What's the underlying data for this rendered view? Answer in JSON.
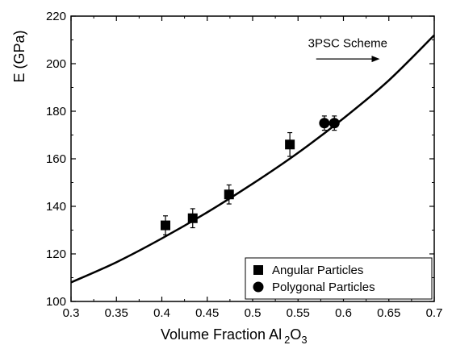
{
  "chart_data": {
    "type": "scatter",
    "title": "",
    "xlabel_parts": [
      "Volume Fraction Al",
      "2",
      "O",
      "3"
    ],
    "ylabel": "E (GPa)",
    "xlim": [
      0.3,
      0.7
    ],
    "ylim": [
      100,
      220
    ],
    "x_ticks": [
      0.3,
      0.35,
      0.4,
      0.45,
      0.5,
      0.55,
      0.6,
      0.65,
      0.7
    ],
    "x_tick_labels": [
      "0.3",
      "0.35",
      "0.4",
      "0.45",
      "0.5",
      "0.55",
      "0.6",
      "0.65",
      "0.7"
    ],
    "y_ticks": [
      100,
      120,
      140,
      160,
      180,
      200,
      220
    ],
    "y_tick_labels": [
      "100",
      "120",
      "140",
      "160",
      "180",
      "200",
      "220"
    ],
    "grid": false,
    "legend_position": "bottom-right",
    "series": [
      {
        "name": "Angular Particles",
        "marker": "square",
        "points": [
          {
            "x": 0.404,
            "y": 132,
            "err": 4
          },
          {
            "x": 0.434,
            "y": 135,
            "err": 4
          },
          {
            "x": 0.474,
            "y": 145,
            "err": 4
          },
          {
            "x": 0.541,
            "y": 166,
            "err": 5
          }
        ]
      },
      {
        "name": "Polygonal Particles",
        "marker": "circle",
        "points": [
          {
            "x": 0.579,
            "y": 175,
            "err": 3
          },
          {
            "x": 0.59,
            "y": 175,
            "err": 3
          }
        ]
      },
      {
        "name": "3PSC Scheme",
        "marker": "line",
        "points": [
          {
            "x": 0.3,
            "y": 108
          },
          {
            "x": 0.35,
            "y": 116.5
          },
          {
            "x": 0.4,
            "y": 126.5
          },
          {
            "x": 0.45,
            "y": 137.5
          },
          {
            "x": 0.5,
            "y": 149.5
          },
          {
            "x": 0.55,
            "y": 162.5
          },
          {
            "x": 0.6,
            "y": 177
          },
          {
            "x": 0.65,
            "y": 193
          },
          {
            "x": 0.7,
            "y": 212
          }
        ]
      }
    ],
    "annotations": [
      {
        "text": "3PSC Scheme",
        "arrow_from": [
          0.57,
          202
        ],
        "arrow_to": [
          0.64,
          202
        ],
        "text_at": [
          0.561,
          207
        ]
      }
    ]
  }
}
